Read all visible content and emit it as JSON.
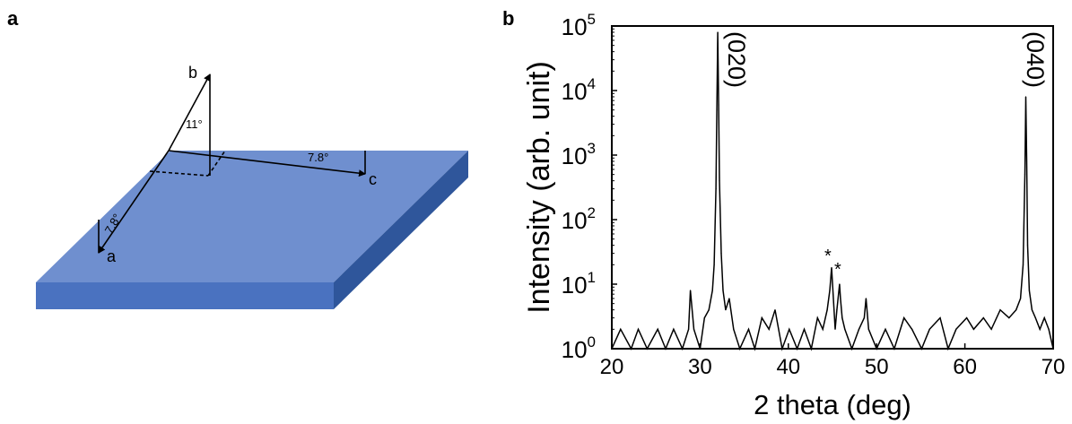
{
  "panel_a": {
    "label": "a",
    "axes": {
      "a": "a",
      "b": "b",
      "c": "c"
    },
    "angles": {
      "ab": "11°",
      "c": "7.8°",
      "a": "7.8°"
    },
    "colors": {
      "top": "#6f8fcf",
      "front": "#4a72c0",
      "side": "#2f569b"
    }
  },
  "panel_b": {
    "label": "b",
    "peak_labels": [
      "(020)",
      "(040)"
    ],
    "star": "*"
  },
  "chart_data": {
    "type": "line",
    "xlabel": "2 theta (deg)",
    "ylabel": "Intensity (arb. unit)",
    "xlim": [
      20,
      70
    ],
    "ylim": [
      1,
      100000
    ],
    "yscale": "log",
    "x_ticks": [
      20,
      30,
      40,
      50,
      60,
      70
    ],
    "y_tick_exponents": [
      0,
      1,
      2,
      3,
      4,
      5
    ],
    "y_tick_base": "10",
    "grid": false,
    "series": [
      {
        "color": "#000000",
        "x": [
          20.0,
          21.0,
          22.2,
          23.0,
          24.0,
          25.2,
          26.1,
          27.0,
          28.0,
          28.7,
          28.9,
          29.3,
          30.0,
          30.5,
          31.0,
          31.4,
          31.6,
          31.8,
          31.9,
          32.0,
          32.1,
          32.2,
          32.4,
          32.6,
          32.9,
          33.3,
          33.8,
          34.5,
          35.5,
          36.2,
          37.0,
          37.8,
          38.5,
          39.3,
          40.1,
          41.0,
          41.8,
          42.6,
          43.3,
          43.9,
          44.4,
          44.7,
          44.9,
          45.1,
          45.3,
          45.5,
          45.8,
          45.9,
          46.1,
          46.4,
          47.2,
          48.0,
          48.6,
          48.8,
          49.1,
          50.0,
          51.0,
          52.0,
          53.1,
          54.0,
          55.1,
          56.0,
          57.2,
          58.1,
          59.0,
          60.2,
          61.0,
          62.1,
          63.0,
          64.0,
          65.0,
          65.8,
          66.3,
          66.6,
          66.8,
          66.9,
          67.0,
          67.1,
          67.3,
          67.6,
          68.0,
          68.5,
          69.0,
          69.5,
          70.0
        ],
        "y": [
          1,
          2,
          1,
          2,
          1,
          2,
          1,
          2,
          1,
          2,
          8,
          2,
          1,
          3,
          4,
          8,
          20,
          300,
          5000,
          80000,
          6000,
          400,
          30,
          8,
          4,
          6,
          2,
          1,
          2,
          1,
          3,
          2,
          4,
          1,
          2,
          1,
          2,
          1,
          3,
          2,
          4,
          8,
          18,
          6,
          2,
          4,
          10,
          6,
          3,
          2,
          1,
          2,
          3,
          6,
          2,
          1,
          2,
          1,
          3,
          2,
          1,
          2,
          3,
          1,
          2,
          3,
          2,
          3,
          2,
          4,
          3,
          4,
          6,
          20,
          500,
          8000,
          800,
          40,
          8,
          4,
          3,
          2,
          3,
          2,
          1
        ]
      }
    ]
  }
}
